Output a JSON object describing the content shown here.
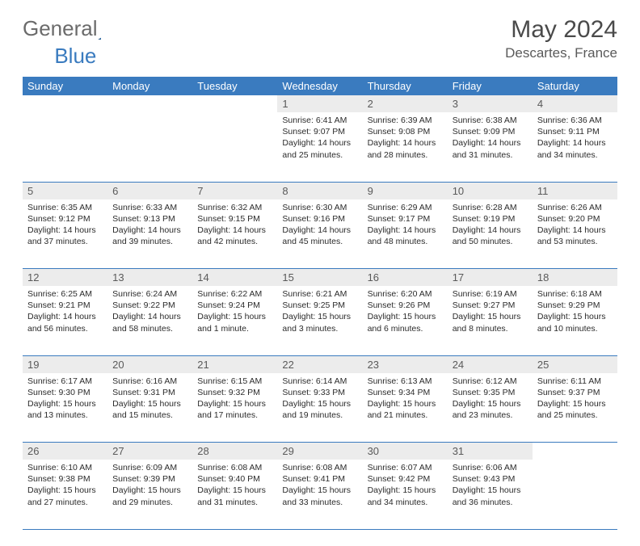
{
  "logo": {
    "part1": "General",
    "part2": "Blue"
  },
  "title": "May 2024",
  "location": "Descartes, France",
  "header_bg": "#3a7bbf",
  "header_fg": "#ffffff",
  "daynum_bg": "#ececec",
  "rule_color": "#3a7bbf",
  "body_fontsize": 10.5,
  "weekdays": [
    "Sunday",
    "Monday",
    "Tuesday",
    "Wednesday",
    "Thursday",
    "Friday",
    "Saturday"
  ],
  "weeks": [
    {
      "nums": [
        "",
        "",
        "",
        "1",
        "2",
        "3",
        "4"
      ],
      "cells": [
        null,
        null,
        null,
        {
          "sunrise": "6:41 AM",
          "sunset": "9:07 PM",
          "daylight": "14 hours and 25 minutes."
        },
        {
          "sunrise": "6:39 AM",
          "sunset": "9:08 PM",
          "daylight": "14 hours and 28 minutes."
        },
        {
          "sunrise": "6:38 AM",
          "sunset": "9:09 PM",
          "daylight": "14 hours and 31 minutes."
        },
        {
          "sunrise": "6:36 AM",
          "sunset": "9:11 PM",
          "daylight": "14 hours and 34 minutes."
        }
      ]
    },
    {
      "nums": [
        "5",
        "6",
        "7",
        "8",
        "9",
        "10",
        "11"
      ],
      "cells": [
        {
          "sunrise": "6:35 AM",
          "sunset": "9:12 PM",
          "daylight": "14 hours and 37 minutes."
        },
        {
          "sunrise": "6:33 AM",
          "sunset": "9:13 PM",
          "daylight": "14 hours and 39 minutes."
        },
        {
          "sunrise": "6:32 AM",
          "sunset": "9:15 PM",
          "daylight": "14 hours and 42 minutes."
        },
        {
          "sunrise": "6:30 AM",
          "sunset": "9:16 PM",
          "daylight": "14 hours and 45 minutes."
        },
        {
          "sunrise": "6:29 AM",
          "sunset": "9:17 PM",
          "daylight": "14 hours and 48 minutes."
        },
        {
          "sunrise": "6:28 AM",
          "sunset": "9:19 PM",
          "daylight": "14 hours and 50 minutes."
        },
        {
          "sunrise": "6:26 AM",
          "sunset": "9:20 PM",
          "daylight": "14 hours and 53 minutes."
        }
      ]
    },
    {
      "nums": [
        "12",
        "13",
        "14",
        "15",
        "16",
        "17",
        "18"
      ],
      "cells": [
        {
          "sunrise": "6:25 AM",
          "sunset": "9:21 PM",
          "daylight": "14 hours and 56 minutes."
        },
        {
          "sunrise": "6:24 AM",
          "sunset": "9:22 PM",
          "daylight": "14 hours and 58 minutes."
        },
        {
          "sunrise": "6:22 AM",
          "sunset": "9:24 PM",
          "daylight": "15 hours and 1 minute."
        },
        {
          "sunrise": "6:21 AM",
          "sunset": "9:25 PM",
          "daylight": "15 hours and 3 minutes."
        },
        {
          "sunrise": "6:20 AM",
          "sunset": "9:26 PM",
          "daylight": "15 hours and 6 minutes."
        },
        {
          "sunrise": "6:19 AM",
          "sunset": "9:27 PM",
          "daylight": "15 hours and 8 minutes."
        },
        {
          "sunrise": "6:18 AM",
          "sunset": "9:29 PM",
          "daylight": "15 hours and 10 minutes."
        }
      ]
    },
    {
      "nums": [
        "19",
        "20",
        "21",
        "22",
        "23",
        "24",
        "25"
      ],
      "cells": [
        {
          "sunrise": "6:17 AM",
          "sunset": "9:30 PM",
          "daylight": "15 hours and 13 minutes."
        },
        {
          "sunrise": "6:16 AM",
          "sunset": "9:31 PM",
          "daylight": "15 hours and 15 minutes."
        },
        {
          "sunrise": "6:15 AM",
          "sunset": "9:32 PM",
          "daylight": "15 hours and 17 minutes."
        },
        {
          "sunrise": "6:14 AM",
          "sunset": "9:33 PM",
          "daylight": "15 hours and 19 minutes."
        },
        {
          "sunrise": "6:13 AM",
          "sunset": "9:34 PM",
          "daylight": "15 hours and 21 minutes."
        },
        {
          "sunrise": "6:12 AM",
          "sunset": "9:35 PM",
          "daylight": "15 hours and 23 minutes."
        },
        {
          "sunrise": "6:11 AM",
          "sunset": "9:37 PM",
          "daylight": "15 hours and 25 minutes."
        }
      ]
    },
    {
      "nums": [
        "26",
        "27",
        "28",
        "29",
        "30",
        "31",
        ""
      ],
      "cells": [
        {
          "sunrise": "6:10 AM",
          "sunset": "9:38 PM",
          "daylight": "15 hours and 27 minutes."
        },
        {
          "sunrise": "6:09 AM",
          "sunset": "9:39 PM",
          "daylight": "15 hours and 29 minutes."
        },
        {
          "sunrise": "6:08 AM",
          "sunset": "9:40 PM",
          "daylight": "15 hours and 31 minutes."
        },
        {
          "sunrise": "6:08 AM",
          "sunset": "9:41 PM",
          "daylight": "15 hours and 33 minutes."
        },
        {
          "sunrise": "6:07 AM",
          "sunset": "9:42 PM",
          "daylight": "15 hours and 34 minutes."
        },
        {
          "sunrise": "6:06 AM",
          "sunset": "9:43 PM",
          "daylight": "15 hours and 36 minutes."
        },
        null
      ]
    }
  ],
  "labels": {
    "sunrise": "Sunrise:",
    "sunset": "Sunset:",
    "daylight": "Daylight:"
  }
}
